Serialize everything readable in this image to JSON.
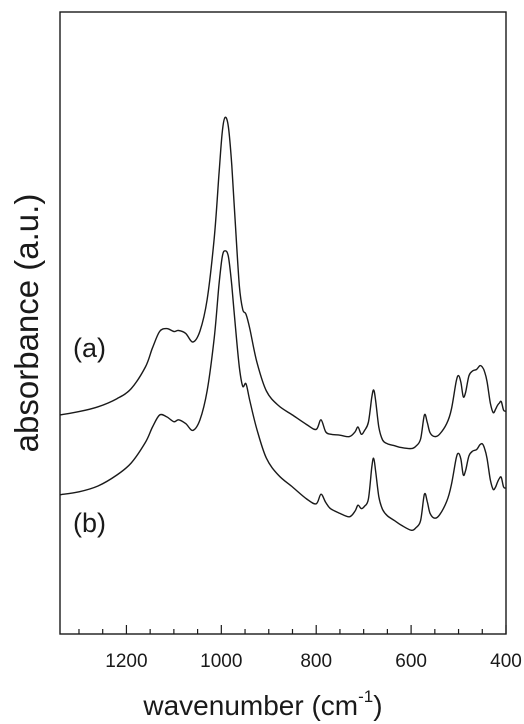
{
  "chart_data": {
    "type": "line",
    "title": "",
    "xlabel": "wavenumber",
    "xlabel_unit": "(cm",
    "xlabel_unit_sup": "-1",
    "xlabel_unit_close": ")",
    "ylabel": "absorbance (a.u.)",
    "x_reversed": true,
    "xlim": [
      1340,
      400
    ],
    "x_ticks": [
      1200,
      1000,
      800,
      600,
      400
    ],
    "x_minor_step": 50,
    "y_ticks_shown": false,
    "grid": false,
    "series": [
      {
        "label": "(a)",
        "x": [
          1340,
          1300,
          1260,
          1220,
          1190,
          1160,
          1145,
          1130,
          1115,
          1100,
          1090,
          1075,
          1060,
          1045,
          1030,
          1015,
          1005,
          998,
          992,
          985,
          978,
          970,
          962,
          955,
          948,
          940,
          925,
          905,
          880,
          850,
          820,
          800,
          790,
          780,
          770,
          750,
          730,
          718,
          712,
          705,
          698,
          690,
          683,
          679,
          675,
          668,
          660,
          650,
          635,
          620,
          600,
          590,
          580,
          572,
          566,
          560,
          550,
          540,
          525,
          515,
          505,
          500,
          495,
          490,
          485,
          478,
          470,
          462,
          455,
          450,
          445,
          440,
          433,
          427,
          422,
          418,
          414,
          410,
          405,
          400
        ],
        "y": [
          0.2,
          0.207,
          0.217,
          0.234,
          0.255,
          0.3,
          0.34,
          0.374,
          0.38,
          0.374,
          0.376,
          0.37,
          0.352,
          0.375,
          0.44,
          0.568,
          0.7,
          0.79,
          0.82,
          0.8,
          0.72,
          0.59,
          0.47,
          0.42,
          0.41,
          0.38,
          0.31,
          0.25,
          0.22,
          0.2,
          0.18,
          0.17,
          0.19,
          0.165,
          0.16,
          0.158,
          0.155,
          0.165,
          0.175,
          0.16,
          0.168,
          0.185,
          0.236,
          0.252,
          0.232,
          0.175,
          0.148,
          0.14,
          0.136,
          0.132,
          0.13,
          0.135,
          0.15,
          0.2,
          0.185,
          0.163,
          0.155,
          0.16,
          0.182,
          0.212,
          0.27,
          0.282,
          0.268,
          0.238,
          0.248,
          0.282,
          0.292,
          0.295,
          0.303,
          0.3,
          0.29,
          0.27,
          0.225,
          0.205,
          0.212,
          0.22,
          0.225,
          0.228,
          0.21,
          0.208
        ]
      },
      {
        "label": "(b)",
        "x": [
          1340,
          1300,
          1260,
          1220,
          1190,
          1160,
          1145,
          1130,
          1115,
          1100,
          1090,
          1075,
          1060,
          1045,
          1030,
          1015,
          1005,
          998,
          992,
          985,
          978,
          970,
          962,
          955,
          948,
          940,
          925,
          905,
          880,
          850,
          820,
          800,
          790,
          780,
          770,
          750,
          730,
          718,
          712,
          705,
          698,
          690,
          683,
          679,
          675,
          668,
          660,
          650,
          635,
          620,
          600,
          590,
          580,
          572,
          566,
          560,
          550,
          540,
          525,
          515,
          505,
          500,
          495,
          490,
          485,
          478,
          470,
          462,
          455,
          450,
          445,
          440,
          433,
          427,
          422,
          418,
          414,
          410,
          405,
          400
        ],
        "y": [
          0.034,
          0.04,
          0.052,
          0.075,
          0.1,
          0.143,
          0.175,
          0.2,
          0.196,
          0.186,
          0.19,
          0.182,
          0.168,
          0.19,
          0.25,
          0.36,
          0.47,
          0.53,
          0.542,
          0.53,
          0.47,
          0.38,
          0.3,
          0.26,
          0.265,
          0.23,
          0.17,
          0.11,
          0.075,
          0.05,
          0.025,
          0.015,
          0.035,
          0.018,
          0.005,
          -0.005,
          -0.012,
          0.0,
          0.012,
          0.005,
          0.01,
          0.025,
          0.09,
          0.11,
          0.085,
          0.03,
          0.003,
          -0.01,
          -0.02,
          -0.03,
          -0.04,
          -0.035,
          -0.02,
          0.035,
          0.02,
          -0.005,
          -0.015,
          -0.008,
          0.02,
          0.055,
          0.11,
          0.12,
          0.108,
          0.075,
          0.085,
          0.115,
          0.125,
          0.128,
          0.138,
          0.14,
          0.13,
          0.11,
          0.065,
          0.045,
          0.05,
          0.06,
          0.068,
          0.07,
          0.05,
          0.048
        ]
      }
    ]
  }
}
